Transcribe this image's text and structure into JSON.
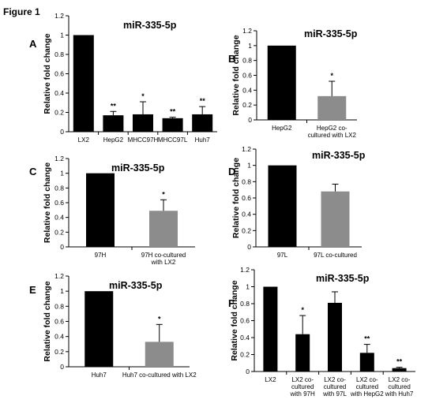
{
  "figure_title": "Figure 1",
  "colors": {
    "black_bar": "#000000",
    "gray_bar": "#8c8c8c",
    "axis": "#000000"
  },
  "chart_data": [
    {
      "panel": "A",
      "type": "bar",
      "title": "miR-335-5p",
      "ylabel": "Relative fold change",
      "ylim": [
        0,
        1.2
      ],
      "yticks": [
        "0",
        "0.2",
        "0.4",
        "0.6",
        "0.8",
        "1",
        "1.2"
      ],
      "categories": [
        [
          "LX2"
        ],
        [
          "HepG2"
        ],
        [
          "MHCC97H"
        ],
        [
          "MHCC97L"
        ],
        [
          "Huh7"
        ]
      ],
      "values": [
        1.0,
        0.17,
        0.18,
        0.14,
        0.18
      ],
      "errors": [
        0,
        0.04,
        0.13,
        0.01,
        0.08
      ],
      "colors": [
        "black",
        "black",
        "black",
        "black",
        "black"
      ],
      "significance": [
        "",
        "**",
        "*",
        "**",
        "**"
      ]
    },
    {
      "panel": "B",
      "type": "bar",
      "title": "miR-335-5p",
      "ylabel": "Relative fold change",
      "ylim": [
        0,
        1.2
      ],
      "yticks": [
        "0",
        "0.2",
        "0.4",
        "0.6",
        "0.8",
        "1",
        "1.2"
      ],
      "categories": [
        [
          "HepG2"
        ],
        [
          "HepG2 co-",
          "cultured with LX2"
        ]
      ],
      "values": [
        1.0,
        0.32
      ],
      "errors": [
        0,
        0.2
      ],
      "colors": [
        "black",
        "gray"
      ],
      "significance": [
        "",
        "*"
      ]
    },
    {
      "panel": "C",
      "type": "bar",
      "title": "miR-335-5p",
      "ylabel": "Relative fold change",
      "ylim": [
        0,
        1.2
      ],
      "yticks": [
        "0",
        "0.2",
        "0.4",
        "0.6",
        "0.8",
        "1",
        "1.2"
      ],
      "categories": [
        [
          "97H"
        ],
        [
          "97H co-cultured",
          "with LX2"
        ]
      ],
      "values": [
        1.0,
        0.49
      ],
      "errors": [
        0,
        0.15
      ],
      "colors": [
        "black",
        "gray"
      ],
      "significance": [
        "",
        "*"
      ]
    },
    {
      "panel": "D",
      "type": "bar",
      "title": "miR-335-5p",
      "ylabel": "Relative fold change",
      "ylim": [
        0,
        1.2
      ],
      "yticks": [
        "0",
        "0.2",
        "0.4",
        "0.6",
        "0.8",
        "1",
        "1.2"
      ],
      "categories": [
        [
          "97L"
        ],
        [
          "97L co-cultured"
        ]
      ],
      "values": [
        1.0,
        0.68
      ],
      "errors": [
        0,
        0.09
      ],
      "colors": [
        "black",
        "gray"
      ],
      "significance": [
        "",
        ""
      ]
    },
    {
      "panel": "E",
      "type": "bar",
      "title": "miR-335-5p",
      "ylabel": "Relative fold change",
      "ylim": [
        0,
        1.2
      ],
      "yticks": [
        "0",
        "0.2",
        "0.4",
        "0.6",
        "0.8",
        "1",
        "1.2"
      ],
      "categories": [
        [
          "Huh7"
        ],
        [
          "Huh7 co-cultured with LX2"
        ]
      ],
      "values": [
        1.0,
        0.33
      ],
      "errors": [
        0,
        0.23
      ],
      "colors": [
        "black",
        "gray"
      ],
      "significance": [
        "",
        "*"
      ]
    },
    {
      "panel": "F",
      "type": "bar",
      "title": "miR-335-5p",
      "ylabel": "Relative fold change",
      "ylim": [
        0,
        1.2
      ],
      "yticks": [
        "0",
        "0.2",
        "0.4",
        "0.6",
        "0.8",
        "1",
        "1.2"
      ],
      "categories": [
        [
          "LX2"
        ],
        [
          "LX2 co-",
          "cultured",
          "with 97H"
        ],
        [
          "LX2 co-",
          "cultured",
          "with 97L"
        ],
        [
          "LX2 co-",
          "cultured",
          "with HepG2"
        ],
        [
          "LX2 co-",
          "cultured",
          "with Huh7"
        ]
      ],
      "values": [
        1.0,
        0.44,
        0.81,
        0.22,
        0.04
      ],
      "errors": [
        0,
        0.22,
        0.13,
        0.1,
        0.01
      ],
      "colors": [
        "black",
        "black",
        "black",
        "black",
        "black"
      ],
      "significance": [
        "",
        "*",
        "",
        "**",
        "**"
      ]
    }
  ]
}
